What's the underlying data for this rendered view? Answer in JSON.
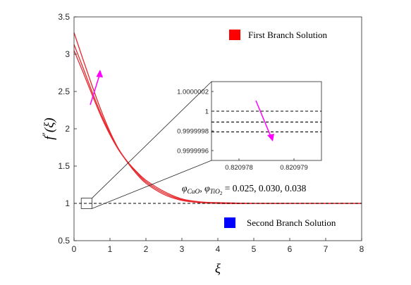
{
  "chart_data": {
    "type": "line",
    "xlabel": "ξ",
    "ylabel_main": "f",
    "ylabel_prime": "\"",
    "ylabel_arg": "(ξ)",
    "xlim": [
      0,
      8
    ],
    "ylim": [
      0.5,
      3.5
    ],
    "xticks": [
      "0",
      "1",
      "2",
      "3",
      "4",
      "5",
      "6",
      "7",
      "8"
    ],
    "yticks": [
      "0.5",
      "1",
      "1.5",
      "2",
      "2.5",
      "3",
      "3.5"
    ],
    "grid": false,
    "legend": [
      {
        "label": "First Branch Solution",
        "color": "#ff0000",
        "position": "top-right"
      },
      {
        "label": "Second Branch Solution",
        "color": "#0000ff",
        "position": "bottom-right"
      }
    ],
    "annotation": {
      "prefix": "φ",
      "sub1": "CuO",
      "comma": ", ",
      "sub2": "TiO",
      "sub2_sub": "2",
      "values": " = 0.025, 0.030, 0.038"
    },
    "series": [
      {
        "color": "#e8282d",
        "x": [
          0,
          0.25,
          0.5,
          0.75,
          1.0,
          1.25,
          1.5,
          1.75,
          2.0,
          2.5,
          3.0,
          3.5,
          4.0,
          5.0,
          6.0,
          7.0,
          8.0
        ],
        "y": [
          3.29,
          2.93,
          2.58,
          2.25,
          1.96,
          1.72,
          1.54,
          1.39,
          1.27,
          1.12,
          1.04,
          1.01,
          1.0,
          1.0,
          1.0,
          1.0,
          1.0
        ]
      },
      {
        "color": "#e8282d",
        "x": [
          0,
          0.25,
          0.5,
          0.75,
          1.0,
          1.25,
          1.5,
          1.75,
          2.0,
          2.5,
          3.0,
          3.5,
          4.0,
          5.0,
          6.0,
          7.0,
          8.0
        ],
        "y": [
          3.13,
          2.82,
          2.5,
          2.2,
          1.94,
          1.72,
          1.55,
          1.41,
          1.29,
          1.14,
          1.05,
          1.02,
          1.0,
          1.0,
          1.0,
          1.0,
          1.0
        ]
      },
      {
        "color": "#e8282d",
        "x": [
          0,
          0.25,
          0.5,
          0.75,
          1.0,
          1.25,
          1.5,
          1.75,
          2.0,
          2.5,
          3.0,
          3.5,
          4.0,
          5.0,
          6.0,
          7.0,
          8.0
        ],
        "y": [
          3.05,
          2.76,
          2.46,
          2.17,
          1.92,
          1.71,
          1.55,
          1.42,
          1.31,
          1.16,
          1.06,
          1.02,
          1.01,
          1.0,
          1.0,
          1.0,
          1.0
        ]
      },
      {
        "color": "#000000",
        "dashed": true,
        "x": [
          0,
          8
        ],
        "y": [
          1,
          1
        ]
      }
    ],
    "zoom_box": {
      "x": [
        0.2,
        0.5
      ],
      "y": [
        0.93,
        1.07
      ]
    },
    "inset": {
      "xlim": [
        0.8209775,
        0.8209795
      ],
      "ylim": [
        0.9999995,
        1.0000003
      ],
      "xticks": [
        "0.820978",
        "0.820979"
      ],
      "yticks": [
        "0.9999996",
        "0.9999998",
        "1",
        "1.0000002"
      ],
      "series": [
        {
          "color": "#000000",
          "dashed": true,
          "y": 1.0
        },
        {
          "color": "#000000",
          "dashed": true,
          "y": 0.99999989
        },
        {
          "color": "#000000",
          "dashed": true,
          "y": 0.99999979
        }
      ]
    },
    "arrow_color": "#ff00ff"
  }
}
